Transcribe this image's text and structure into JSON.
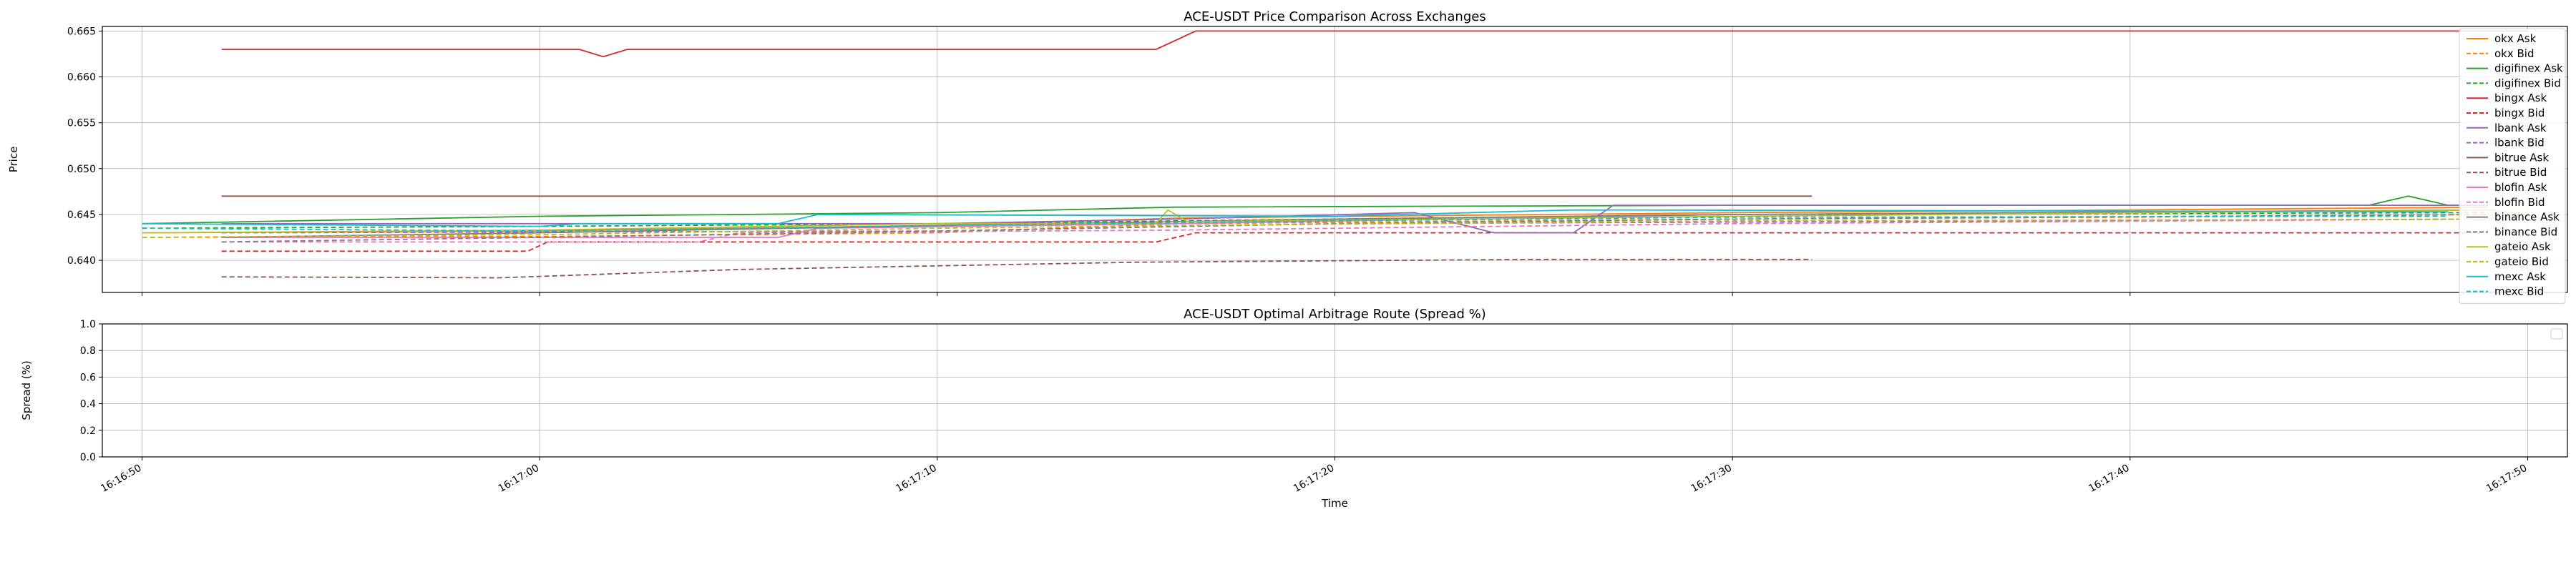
{
  "chart_data": [
    {
      "type": "line",
      "title": "ACE-USDT Price Comparison Across Exchanges",
      "xlabel": "",
      "ylabel": "Price",
      "ylim": [
        0.6365,
        0.6655
      ],
      "xlim": [
        "16:16:49",
        "16:17:51"
      ],
      "yticks": [
        0.64,
        0.645,
        0.65,
        0.655,
        0.66,
        0.665
      ],
      "ytick_labels": [
        "0.640",
        "0.645",
        "0.650",
        "0.655",
        "0.660",
        "0.665"
      ],
      "grid": true,
      "legend_position": "right",
      "series": [
        {
          "name": "okx Ask",
          "color": "#ff7f0e",
          "dash": "solid",
          "points": [
            [
              "16:16:50",
              0.643
            ],
            [
              "16:17:00",
              0.6432
            ],
            [
              "16:17:10",
              0.6438
            ],
            [
              "16:17:16",
              0.6446
            ],
            [
              "16:17:30",
              0.6452
            ],
            [
              "16:17:40",
              0.6455
            ],
            [
              "16:17:49",
              0.6458
            ]
          ]
        },
        {
          "name": "okx Bid",
          "color": "#ff7f0e",
          "dash": "dashed",
          "points": [
            [
              "16:16:50",
              0.6425
            ],
            [
              "16:17:00",
              0.6426
            ],
            [
              "16:17:10",
              0.643
            ],
            [
              "16:17:16",
              0.644
            ],
            [
              "16:17:30",
              0.6445
            ],
            [
              "16:17:40",
              0.6447
            ],
            [
              "16:17:49",
              0.645
            ]
          ]
        },
        {
          "name": "digifinex Ask",
          "color": "#2ca02c",
          "dash": "solid",
          "points": [
            [
              "16:16:50",
              0.644
            ],
            [
              "16:17:00",
              0.6448
            ],
            [
              "16:17:10",
              0.6452
            ],
            [
              "16:17:16",
              0.6458
            ],
            [
              "16:17:30",
              0.646
            ],
            [
              "16:17:46",
              0.646
            ],
            [
              "16:17:47",
              0.647
            ],
            [
              "16:17:48",
              0.646
            ],
            [
              "16:17:49",
              0.646
            ]
          ]
        },
        {
          "name": "digifinex Bid",
          "color": "#2ca02c",
          "dash": "dashed",
          "points": [
            [
              "16:16:50",
              0.6435
            ],
            [
              "16:17:00",
              0.6437
            ],
            [
              "16:17:10",
              0.644
            ],
            [
              "16:17:16",
              0.6443
            ],
            [
              "16:17:30",
              0.645
            ],
            [
              "16:17:49",
              0.6452
            ]
          ]
        },
        {
          "name": "bingx Ask",
          "color": "#d62728",
          "dash": "solid",
          "points": [
            [
              "16:16:52",
              0.663
            ],
            [
              "16:17:01",
              0.663
            ],
            [
              "16:17:01.6",
              0.6622
            ],
            [
              "16:17:02.2",
              0.663
            ],
            [
              "16:17:15.5",
              0.663
            ],
            [
              "16:17:16.5",
              0.665
            ],
            [
              "16:17:50",
              0.665
            ]
          ]
        },
        {
          "name": "bingx Bid",
          "color": "#d62728",
          "dash": "dashed",
          "points": [
            [
              "16:16:52",
              0.641
            ],
            [
              "16:16:59.7",
              0.641
            ],
            [
              "16:17:00.2",
              0.642
            ],
            [
              "16:17:15.5",
              0.642
            ],
            [
              "16:17:16.5",
              0.643
            ],
            [
              "16:17:49",
              0.643
            ]
          ]
        },
        {
          "name": "lbank Ask",
          "color": "#9467bd",
          "dash": "solid",
          "points": [
            [
              "16:16:52",
              0.644
            ],
            [
              "16:17:10",
              0.644
            ],
            [
              "16:17:16",
              0.6445
            ],
            [
              "16:17:22",
              0.6452
            ],
            [
              "16:17:24",
              0.643
            ],
            [
              "16:17:26",
              0.643
            ],
            [
              "16:17:27",
              0.646
            ],
            [
              "16:17:49",
              0.646
            ]
          ]
        },
        {
          "name": "lbank Bid",
          "color": "#9467bd",
          "dash": "dashed",
          "points": [
            [
              "16:16:52",
              0.643
            ],
            [
              "16:17:10",
              0.6432
            ],
            [
              "16:17:20",
              0.644
            ],
            [
              "16:17:49",
              0.6445
            ]
          ]
        },
        {
          "name": "bitrue Ask",
          "color": "#8c564b",
          "dash": "solid",
          "points": [
            [
              "16:16:52",
              0.647
            ],
            [
              "16:17:32",
              0.647
            ]
          ]
        },
        {
          "name": "bitrue Bid",
          "color": "#8c564b",
          "dash": "dashed",
          "points": [
            [
              "16:16:52",
              0.6382
            ],
            [
              "16:16:59",
              0.6381
            ],
            [
              "16:17:05",
              0.639
            ],
            [
              "16:17:15",
              0.6398
            ],
            [
              "16:17:25",
              0.6401
            ],
            [
              "16:17:32",
              0.6401
            ]
          ]
        },
        {
          "name": "blofin Ask",
          "color": "#e377c2",
          "dash": "solid",
          "points": [
            [
              "16:16:52",
              0.6425
            ],
            [
              "16:17:06",
              0.6425
            ],
            [
              "16:17:07",
              0.6435
            ],
            [
              "16:17:16",
              0.644
            ],
            [
              "16:17:30",
              0.645
            ],
            [
              "16:17:49",
              0.6455
            ]
          ]
        },
        {
          "name": "blofin Bid",
          "color": "#e377c2",
          "dash": "dashed",
          "points": [
            [
              "16:16:52",
              0.642
            ],
            [
              "16:17:04",
              0.642
            ],
            [
              "16:17:05",
              0.643
            ],
            [
              "16:17:16",
              0.6433
            ],
            [
              "16:17:30",
              0.644
            ],
            [
              "16:17:49",
              0.6445
            ]
          ]
        },
        {
          "name": "binance Ask",
          "color": "#7f7f7f",
          "dash": "solid",
          "points": [
            [
              "16:16:52",
              0.6425
            ],
            [
              "16:17:00",
              0.643
            ],
            [
              "16:17:10",
              0.6438
            ],
            [
              "16:17:20",
              0.6445
            ],
            [
              "16:17:30",
              0.645
            ],
            [
              "16:17:49",
              0.6455
            ]
          ]
        },
        {
          "name": "binance Bid",
          "color": "#7f7f7f",
          "dash": "dashed",
          "points": [
            [
              "16:16:52",
              0.642
            ],
            [
              "16:17:00",
              0.6425
            ],
            [
              "16:17:10",
              0.6432
            ],
            [
              "16:17:20",
              0.644
            ],
            [
              "16:17:30",
              0.6445
            ],
            [
              "16:17:49",
              0.645
            ]
          ]
        },
        {
          "name": "gateio Ask",
          "color": "#bcbd22",
          "dash": "solid",
          "points": [
            [
              "16:16:50",
              0.643
            ],
            [
              "16:17:00",
              0.6433
            ],
            [
              "16:17:10",
              0.644
            ],
            [
              "16:17:15.5",
              0.644
            ],
            [
              "16:17:15.8",
              0.6455
            ],
            [
              "16:17:16.3",
              0.6442
            ],
            [
              "16:17:30",
              0.6448
            ],
            [
              "16:17:49",
              0.6455
            ],
            [
              "16:17:50",
              0.645
            ]
          ]
        },
        {
          "name": "gateio Bid",
          "color": "#bcbd22",
          "dash": "dashed",
          "points": [
            [
              "16:16:50",
              0.6425
            ],
            [
              "16:17:00",
              0.6428
            ],
            [
              "16:17:10",
              0.6435
            ],
            [
              "16:17:16",
              0.6438
            ],
            [
              "16:17:30",
              0.6443
            ],
            [
              "16:17:50",
              0.6445
            ]
          ]
        },
        {
          "name": "mexc Ask",
          "color": "#17becf",
          "dash": "solid",
          "points": [
            [
              "16:16:50",
              0.644
            ],
            [
              "16:17:00",
              0.6437
            ],
            [
              "16:17:01",
              0.644
            ],
            [
              "16:17:06",
              0.644
            ],
            [
              "16:17:07",
              0.645
            ],
            [
              "16:17:20",
              0.6448
            ],
            [
              "16:17:26",
              0.6455
            ],
            [
              "16:17:48",
              0.6453
            ]
          ]
        },
        {
          "name": "mexc Bid",
          "color": "#17becf",
          "dash": "dashed",
          "points": [
            [
              "16:16:50",
              0.6435
            ],
            [
              "16:17:00",
              0.6432
            ],
            [
              "16:17:10",
              0.6438
            ],
            [
              "16:17:20",
              0.6443
            ],
            [
              "16:17:30",
              0.6447
            ],
            [
              "16:17:48",
              0.6448
            ]
          ]
        }
      ]
    },
    {
      "type": "line",
      "title": "ACE-USDT Optimal Arbitrage Route (Spread %)",
      "xlabel": "Time",
      "ylabel": "Spread (%)",
      "ylim": [
        0.0,
        1.0
      ],
      "xlim": [
        "16:16:49",
        "16:17:51"
      ],
      "yticks": [
        0.0,
        0.2,
        0.4,
        0.6,
        0.8,
        1.0
      ],
      "ytick_labels": [
        "0.0",
        "0.2",
        "0.4",
        "0.6",
        "0.8",
        "1.0"
      ],
      "xticks": [
        "16:16:50",
        "16:17:00",
        "16:17:10",
        "16:17:20",
        "16:17:30",
        "16:17:40",
        "16:17:50"
      ],
      "xtick_labels": [
        "16:16:50",
        "16:17:00",
        "16:17:10",
        "16:17:20",
        "16:17:30",
        "16:17:40",
        "16:17:50"
      ],
      "grid": true,
      "legend_position": "top-right",
      "series": []
    }
  ]
}
